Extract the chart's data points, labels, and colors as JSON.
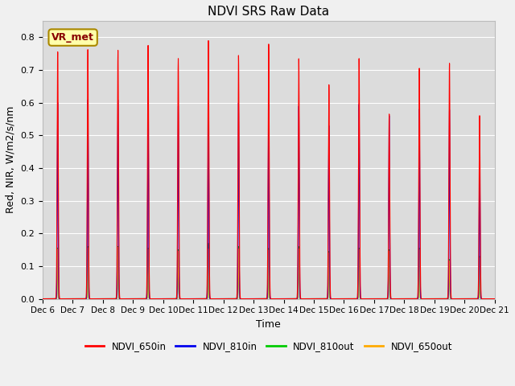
{
  "title": "NDVI SRS Raw Data",
  "xlabel": "Time",
  "ylabel": "Red, NIR, W/m2/s/nm",
  "ylim": [
    0.0,
    0.85
  ],
  "bg_color": "#dcdcdc",
  "fig_facecolor": "#f0f0f0",
  "annotation_text": "VR_met",
  "annotation_bg": "#ffffaa",
  "annotation_border": "#aa8800",
  "series": {
    "NDVI_650in": {
      "color": "#ff0000",
      "label": "NDVI_650in"
    },
    "NDVI_810in": {
      "color": "#0000ee",
      "label": "NDVI_810in"
    },
    "NDVI_810out": {
      "color": "#00cc00",
      "label": "NDVI_810out"
    },
    "NDVI_650out": {
      "color": "#ffaa00",
      "label": "NDVI_650out"
    }
  },
  "n_days": 15,
  "peak_650in": [
    0.755,
    0.762,
    0.76,
    0.775,
    0.735,
    0.79,
    0.745,
    0.78,
    0.735,
    0.655,
    0.735,
    0.565,
    0.705,
    0.72,
    0.56
  ],
  "peak_810in": [
    0.6,
    0.608,
    0.608,
    0.62,
    0.59,
    0.61,
    0.6,
    0.595,
    0.59,
    0.53,
    0.595,
    0.56,
    0.58,
    0.578,
    0.465
  ],
  "peak_810out": [
    0.155,
    0.16,
    0.16,
    0.155,
    0.15,
    0.17,
    0.16,
    0.155,
    0.16,
    0.145,
    0.155,
    0.15,
    0.155,
    0.12,
    0.13
  ],
  "peak_650out": [
    0.152,
    0.156,
    0.158,
    0.152,
    0.146,
    0.153,
    0.153,
    0.15,
    0.153,
    0.141,
    0.151,
    0.146,
    0.15,
    0.116,
    0.126
  ],
  "tick_labels": [
    "Dec 6",
    "Dec 7",
    "Dec 8",
    "Dec 9",
    "Dec 10",
    "Dec 11",
    "Dec 12",
    "Dec 13",
    "Dec 14",
    "Dec 15",
    "Dec 16",
    "Dec 17",
    "Dec 18",
    "Dec 19",
    "Dec 20",
    "Dec 21"
  ],
  "sigma_650in": 0.018,
  "sigma_810in": 0.014,
  "sigma_out": 0.012,
  "pts_per_day": 500
}
